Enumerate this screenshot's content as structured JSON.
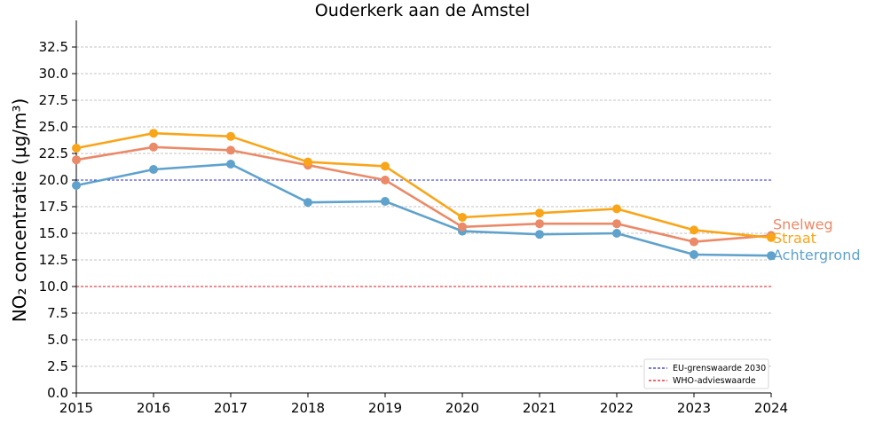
{
  "chart_data": {
    "type": "line",
    "title": "Ouderkerk aan de Amstel",
    "xlabel": "",
    "ylabel": "NO₂ concentratie (µg/m³)",
    "x": [
      2015,
      2016,
      2017,
      2018,
      2019,
      2020,
      2021,
      2022,
      2023,
      2024
    ],
    "xlim": [
      2015,
      2024
    ],
    "ylim": [
      0,
      35
    ],
    "y_ticks": [
      0.0,
      2.5,
      5.0,
      7.5,
      10.0,
      12.5,
      15.0,
      17.5,
      20.0,
      22.5,
      25.0,
      27.5,
      30.0,
      32.5
    ],
    "y_tick_labels": [
      "0.0",
      "2.5",
      "5.0",
      "7.5",
      "10.0",
      "12.5",
      "15.0",
      "17.5",
      "20.0",
      "22.5",
      "25.0",
      "27.5",
      "30.0",
      "32.5"
    ],
    "x_tick_labels": [
      "2015",
      "2016",
      "2017",
      "2018",
      "2019",
      "2020",
      "2021",
      "2022",
      "2023",
      "2024"
    ],
    "grid": "horizontal-dashed",
    "series": [
      {
        "name": "Achtergrond",
        "color": "#5fa2cc",
        "values": [
          19.5,
          21.0,
          21.5,
          17.9,
          18.0,
          15.2,
          14.9,
          15.0,
          13.0,
          12.9
        ]
      },
      {
        "name": "Snelweg",
        "color": "#ea8a68",
        "values": [
          21.9,
          23.1,
          22.8,
          21.4,
          20.0,
          15.6,
          15.9,
          15.9,
          14.2,
          14.8
        ]
      },
      {
        "name": "Straat",
        "color": "#f9a51a",
        "values": [
          23.0,
          24.4,
          24.1,
          21.7,
          21.3,
          16.5,
          16.9,
          17.3,
          15.3,
          14.6
        ]
      }
    ],
    "reference_lines": [
      {
        "name": "EU-grenswaarde 2030",
        "value": 20,
        "color": "#2b2bd6"
      },
      {
        "name": "WHO-advieswaarde",
        "value": 10,
        "color": "#e8121b"
      }
    ],
    "legend": "bottom-right"
  }
}
